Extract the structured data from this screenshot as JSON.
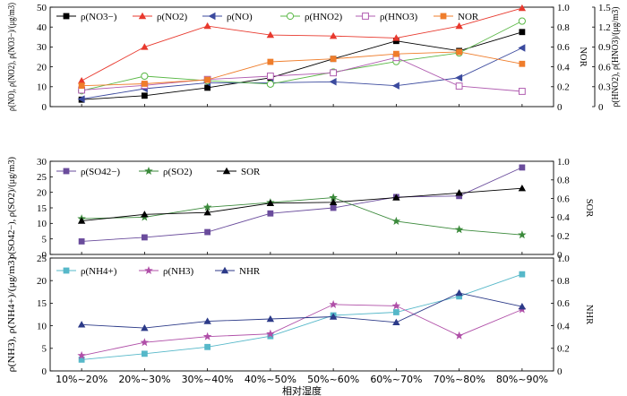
{
  "chart_data": [
    {
      "type": "line",
      "ylabel": "ρ(NO), ρ(NO2), ρ(NO3−)/(μg/m3)",
      "y2label": "NOR",
      "y3label": "ρ(HNO2), ρ(HNO3)/(μg/m3)",
      "ylim": [
        0,
        50
      ],
      "y2lim": [
        0,
        1.0
      ],
      "y3lim": [
        0,
        1.5
      ],
      "yticks": [
        0,
        10,
        20,
        30,
        40,
        50
      ],
      "y2ticks": [
        0,
        0.2,
        0.4,
        0.6,
        0.8,
        1.0
      ],
      "y3ticks": [
        0,
        0.3,
        0.6,
        0.9,
        1.2,
        1.5
      ],
      "legend_position": "top",
      "series": [
        {
          "name": "ρ(NO3−)",
          "axis": "left",
          "color": "#000000",
          "marker": "square-filled",
          "values": [
            3.5,
            5.5,
            9.5,
            14.5,
            24,
            33,
            28,
            37.5
          ]
        },
        {
          "name": "ρ(NO2)",
          "axis": "left",
          "color": "#e8392e",
          "marker": "triangle-up-filled",
          "values": [
            13,
            30,
            40.5,
            36,
            35.5,
            34.5,
            40.5,
            49.5
          ]
        },
        {
          "name": "ρ(NO)",
          "axis": "left",
          "color": "#3b4a9e",
          "marker": "triangle-left-filled",
          "values": [
            3.8,
            9,
            12,
            12,
            12.5,
            10.5,
            14.5,
            29.5
          ]
        },
        {
          "name": "ρ(HNO2)",
          "axis": "right2",
          "color": "#5ab846",
          "marker": "circle-open",
          "values": [
            0.24,
            0.46,
            0.39,
            0.34,
            0.52,
            0.68,
            0.81,
            1.29
          ]
        },
        {
          "name": "ρ(HNO3)",
          "axis": "right2",
          "color": "#b05cb0",
          "marker": "square-open",
          "values": [
            0.25,
            0.32,
            0.41,
            0.46,
            0.51,
            0.74,
            0.31,
            0.23
          ]
        },
        {
          "name": "NOR",
          "axis": "right",
          "color": "#ef7d2b",
          "marker": "square-filled",
          "values": [
            0.21,
            0.23,
            0.27,
            0.45,
            0.48,
            0.53,
            0.55,
            0.43
          ]
        }
      ]
    },
    {
      "type": "line",
      "ylabel": "ρ(SO42−), ρ(SO2)/(μg/m3)",
      "y2label": "SOR",
      "ylim": [
        0,
        30
      ],
      "y2lim": [
        0,
        1.0
      ],
      "yticks": [
        0,
        5,
        10,
        15,
        20,
        25,
        30
      ],
      "y2ticks": [
        0,
        0.2,
        0.4,
        0.6,
        0.8,
        1.0
      ],
      "legend_position": "top",
      "series": [
        {
          "name": "ρ(SO42−)",
          "axis": "left",
          "color": "#6a4c9c",
          "marker": "square-filled",
          "values": [
            4.2,
            5.5,
            7.2,
            13.2,
            15,
            18.5,
            18.8,
            28
          ]
        },
        {
          "name": "ρ(SO2)",
          "axis": "left",
          "color": "#3b8a3b",
          "marker": "star",
          "values": [
            11.5,
            12,
            15.2,
            16.7,
            18.3,
            10.7,
            8,
            6.3
          ]
        },
        {
          "name": "SOR",
          "axis": "right",
          "color": "#000000",
          "marker": "triangle-up-filled",
          "values": [
            0.36,
            0.43,
            0.45,
            0.55,
            0.56,
            0.61,
            0.66,
            0.71
          ]
        }
      ]
    },
    {
      "type": "line",
      "ylabel": "ρ(NH3), ρ(NH4+)/(μg/m3)",
      "y2label": "NHR",
      "ylim": [
        0,
        25
      ],
      "y2lim": [
        0,
        1.0
      ],
      "yticks": [
        0,
        5,
        10,
        15,
        20,
        25
      ],
      "y2ticks": [
        0,
        0.2,
        0.4,
        0.6,
        0.8,
        1.0
      ],
      "legend_position": "top",
      "xlabel": "相对湿度",
      "categories": [
        "10%~20%",
        "20%~30%",
        "30%~40%",
        "40%~50%",
        "50%~60%",
        "60%~70%",
        "70%~80%",
        "80%~90%"
      ],
      "series": [
        {
          "name": "ρ(NH4+)",
          "axis": "left",
          "color": "#56b8c9",
          "marker": "square-filled",
          "values": [
            2.5,
            3.8,
            5.3,
            7.7,
            12.3,
            13,
            16.5,
            21.4
          ]
        },
        {
          "name": "ρ(NH3)",
          "axis": "left",
          "color": "#b04fa8",
          "marker": "star",
          "values": [
            3.4,
            6.3,
            7.6,
            8.2,
            14.7,
            14.4,
            7.8,
            13.6
          ]
        },
        {
          "name": "NHR",
          "axis": "right",
          "color": "#2c3a88",
          "marker": "triangle-up-filled",
          "values": [
            0.41,
            0.38,
            0.44,
            0.46,
            0.48,
            0.43,
            0.69,
            0.57
          ]
        }
      ]
    }
  ]
}
